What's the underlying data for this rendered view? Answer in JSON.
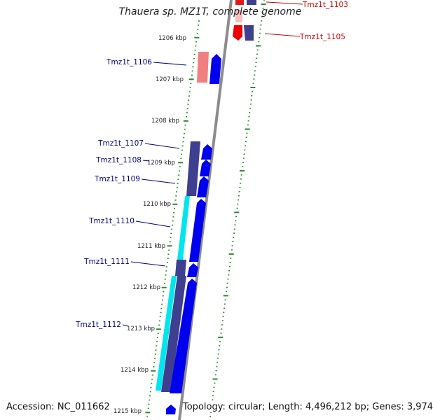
{
  "title": "Thauera sp. MZ1T, complete genome",
  "accession": "Accession: NC_011662",
  "topology": "Topology: circular; Length: 4,496,212 bp; Genes: 3,974",
  "colors": {
    "background": "#ffffff",
    "backbone": "#8c8c8c",
    "tick": "#2a8a2a",
    "gene_forward": "#0000ee",
    "gene_reverse": "#ee0000",
    "gene_label_forward": "#00008b",
    "gene_label_reverse": "#cc0000",
    "cds_purple": "#3f3f8f",
    "cds_cyan": "#00e5ee",
    "cds_pink": "#f08080"
  },
  "kbp_labels": [
    "1206 kbp",
    "1207 kbp",
    "1208 kbp",
    "1209 kbp",
    "1210 kbp",
    "1211 kbp",
    "1212 kbp",
    "1213 kbp",
    "1214 kbp",
    "1215 kbp"
  ],
  "gene_labels": [
    {
      "text": "Tmz1t_1103",
      "strand": "reverse"
    },
    {
      "text": "Tmz1t_1105",
      "strand": "reverse"
    },
    {
      "text": "Tmz1t_1106",
      "strand": "forward"
    },
    {
      "text": "Tmz1t_1107",
      "strand": "forward"
    },
    {
      "text": "Tmz1t_1108",
      "strand": "forward"
    },
    {
      "text": "Tmz1t_1109",
      "strand": "forward"
    },
    {
      "text": "Tmz1t_1110",
      "strand": "forward"
    },
    {
      "text": "Tmz1t_1111",
      "strand": "forward"
    },
    {
      "text": "Tmz1t_1112",
      "strand": "forward"
    }
  ]
}
